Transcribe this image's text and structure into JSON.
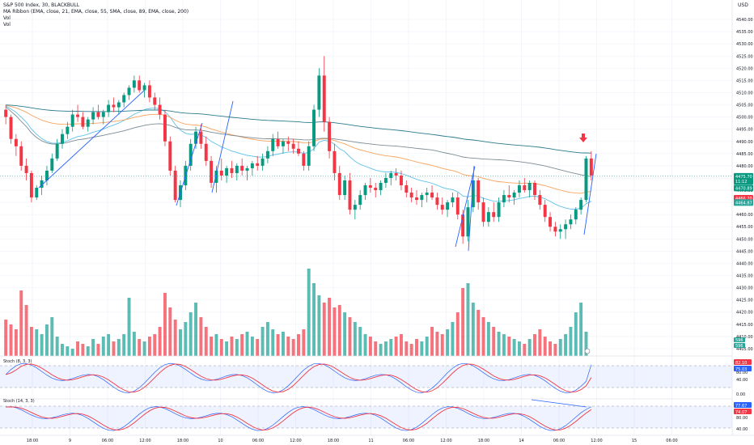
{
  "header": {
    "symbol_line": "S&P 500 Index, 30, BLACKBULL",
    "ma_line": "MA Ribbon (EMA, close, 21, EMA, close, 55, SMA, close, 89, EMA, close, 200)",
    "vol1": "Vol",
    "vol2": "Vol",
    "currency": "USD"
  },
  "price_axis": {
    "ticks": [
      "4540.00",
      "4535.00",
      "4530.00",
      "4525.00",
      "4520.00",
      "4515.00",
      "4510.00",
      "4505.00",
      "4500.00",
      "4495.00",
      "4490.00",
      "4485.00",
      "4480.00",
      "4475.00",
      "4470.00",
      "4465.00",
      "4460.00",
      "4455.00",
      "4450.00",
      "4445.00",
      "4440.00",
      "4435.00",
      "4430.00",
      "4425.00",
      "4420.00",
      "4415.00",
      "4410.00",
      "4405.00"
    ],
    "badges": [
      {
        "text": "4475.70",
        "color": "#089981",
        "y": 4475.7
      },
      {
        "text": "11:12",
        "color": "#089981",
        "y": 4473.6
      },
      {
        "text": "4470.89",
        "color": "#089981",
        "y": 4470.9
      },
      {
        "text": "4466.70",
        "color": "#f23645",
        "y": 4466.7
      },
      {
        "text": "4464.87",
        "color": "#26a69a",
        "y": 4464.9
      }
    ],
    "volume_badges": [
      {
        "text": "596",
        "color": "#26a69a"
      },
      {
        "text": "596",
        "color": "#26a69a"
      }
    ]
  },
  "stoch1": {
    "label": "Stoch (8, 3, 3)",
    "badges": [
      {
        "text": "82.10",
        "color": "#f23645"
      },
      {
        "text": "75.03",
        "color": "#2962ff"
      }
    ],
    "levels": [
      "80.00",
      "40.00",
      "0.00"
    ]
  },
  "stoch2": {
    "label": "Stoch (14, 3, 3)",
    "badges": [
      {
        "text": "77.67",
        "color": "#2962ff"
      },
      {
        "text": "74.07",
        "color": "#f23645"
      }
    ],
    "levels": [
      "80.00",
      "40.00"
    ]
  },
  "time_axis": {
    "labels": [
      "18:00",
      "9",
      "06:00",
      "12:00",
      "18:00",
      "10",
      "06:00",
      "12:00",
      "18:00",
      "11",
      "06:00",
      "12:00",
      "18:00",
      "14",
      "06:00",
      "12:00",
      "15",
      "06:00"
    ]
  },
  "chart_data": {
    "type": "candlestick",
    "title": "S&P 500 Index, 30, BLACKBULL",
    "ylabel": "USD",
    "ylim": [
      4402,
      4543
    ],
    "candles": [
      [
        4503,
        4505,
        4497,
        4500
      ],
      [
        4500,
        4501,
        4489,
        4491
      ],
      [
        4491,
        4493,
        4484,
        4488
      ],
      [
        4488,
        4490,
        4478,
        4480
      ],
      [
        4480,
        4483,
        4474,
        4477
      ],
      [
        4477,
        4478,
        4465,
        4467
      ],
      [
        4467,
        4472,
        4466,
        4471
      ],
      [
        4471,
        4476,
        4468,
        4474
      ],
      [
        4474,
        4480,
        4472,
        4478
      ],
      [
        4478,
        4485,
        4477,
        4483
      ],
      [
        4483,
        4491,
        4482,
        4489
      ],
      [
        4489,
        4495,
        4487,
        4493
      ],
      [
        4493,
        4498,
        4491,
        4496
      ],
      [
        4496,
        4503,
        4494,
        4501
      ],
      [
        4501,
        4505,
        4498,
        4500
      ],
      [
        4500,
        4502,
        4495,
        4496
      ],
      [
        4496,
        4500,
        4494,
        4499
      ],
      [
        4499,
        4504,
        4497,
        4502
      ],
      [
        4502,
        4505,
        4499,
        4500
      ],
      [
        4500,
        4503,
        4497,
        4502
      ],
      [
        4502,
        4507,
        4500,
        4505
      ],
      [
        4505,
        4508,
        4502,
        4504
      ],
      [
        4504,
        4507,
        4501,
        4506
      ],
      [
        4506,
        4510,
        4504,
        4509
      ],
      [
        4509,
        4513,
        4507,
        4512
      ],
      [
        4512,
        4517,
        4510,
        4515
      ],
      [
        4515,
        4517,
        4510,
        4511
      ],
      [
        4511,
        4514,
        4508,
        4513
      ],
      [
        4513,
        4515,
        4506,
        4508
      ],
      [
        4508,
        4510,
        4503,
        4505
      ],
      [
        4505,
        4508,
        4499,
        4501
      ],
      [
        4501,
        4503,
        4488,
        4490
      ],
      [
        4490,
        4492,
        4476,
        4478
      ],
      [
        4478,
        4480,
        4465,
        4466
      ],
      [
        4466,
        4474,
        4463,
        4472
      ],
      [
        4472,
        4482,
        4470,
        4480
      ],
      [
        4480,
        4491,
        4478,
        4489
      ],
      [
        4489,
        4496,
        4487,
        4494
      ],
      [
        4494,
        4497,
        4487,
        4489
      ],
      [
        4489,
        4492,
        4480,
        4482
      ],
      [
        4482,
        4484,
        4471,
        4473
      ],
      [
        4473,
        4480,
        4469,
        4478
      ],
      [
        4478,
        4483,
        4474,
        4476
      ],
      [
        4476,
        4480,
        4473,
        4479
      ],
      [
        4479,
        4482,
        4475,
        4477
      ],
      [
        4477,
        4481,
        4474,
        4480
      ],
      [
        4480,
        4483,
        4476,
        4478
      ],
      [
        4478,
        4480,
        4474,
        4479
      ],
      [
        4479,
        4482,
        4476,
        4481
      ],
      [
        4481,
        4484,
        4478,
        4480
      ],
      [
        4480,
        4485,
        4478,
        4483
      ],
      [
        4483,
        4488,
        4481,
        4486
      ],
      [
        4486,
        4493,
        4484,
        4491
      ],
      [
        4491,
        4494,
        4487,
        4488
      ],
      [
        4488,
        4491,
        4485,
        4490
      ],
      [
        4490,
        4492,
        4486,
        4489
      ],
      [
        4489,
        4491,
        4485,
        4487
      ],
      [
        4487,
        4490,
        4484,
        4485
      ],
      [
        4485,
        4486,
        4478,
        4480
      ],
      [
        4480,
        4490,
        4478,
        4488
      ],
      [
        4488,
        4505,
        4486,
        4503
      ],
      [
        4503,
        4520,
        4500,
        4517
      ],
      [
        4517,
        4525,
        4494,
        4498
      ],
      [
        4498,
        4500,
        4483,
        4486
      ],
      [
        4486,
        4489,
        4474,
        4477
      ],
      [
        4477,
        4480,
        4466,
        4468
      ],
      [
        4468,
        4476,
        4466,
        4474
      ],
      [
        4474,
        4477,
        4460,
        4462
      ],
      [
        4462,
        4466,
        4458,
        4464
      ],
      [
        4464,
        4470,
        4462,
        4468
      ],
      [
        4468,
        4473,
        4466,
        4472
      ],
      [
        4472,
        4475,
        4469,
        4471
      ],
      [
        4471,
        4473,
        4467,
        4470
      ],
      [
        4470,
        4474,
        4468,
        4473
      ],
      [
        4473,
        4477,
        4471,
        4475
      ],
      [
        4475,
        4478,
        4472,
        4477
      ],
      [
        4477,
        4479,
        4474,
        4476
      ],
      [
        4476,
        4478,
        4470,
        4472
      ],
      [
        4472,
        4474,
        4467,
        4469
      ],
      [
        4469,
        4471,
        4465,
        4467
      ],
      [
        4467,
        4470,
        4464,
        4466
      ],
      [
        4466,
        4469,
        4463,
        4468
      ],
      [
        4468,
        4471,
        4465,
        4469
      ],
      [
        4469,
        4472,
        4466,
        4467
      ],
      [
        4467,
        4469,
        4462,
        4464
      ],
      [
        4464,
        4467,
        4460,
        4462
      ],
      [
        4462,
        4466,
        4459,
        4465
      ],
      [
        4465,
        4469,
        4463,
        4467
      ],
      [
        4467,
        4469,
        4458,
        4460
      ],
      [
        4460,
        4462,
        4448,
        4451
      ],
      [
        4451,
        4466,
        4449,
        4463
      ],
      [
        4463,
        4476,
        4461,
        4474
      ],
      [
        4474,
        4475,
        4462,
        4465
      ],
      [
        4465,
        4467,
        4455,
        4457
      ],
      [
        4457,
        4463,
        4455,
        4461
      ],
      [
        4461,
        4465,
        4457,
        4459
      ],
      [
        4459,
        4467,
        4457,
        4465
      ],
      [
        4465,
        4470,
        4463,
        4468
      ],
      [
        4468,
        4472,
        4465,
        4467
      ],
      [
        4467,
        4470,
        4464,
        4469
      ],
      [
        4469,
        4474,
        4467,
        4472
      ],
      [
        4472,
        4475,
        4469,
        4470
      ],
      [
        4470,
        4474,
        4467,
        4473
      ],
      [
        4473,
        4474,
        4466,
        4468
      ],
      [
        4468,
        4470,
        4462,
        4464
      ],
      [
        4464,
        4466,
        4457,
        4459
      ],
      [
        4459,
        4461,
        4453,
        4455
      ],
      [
        4455,
        4457,
        4451,
        4453
      ],
      [
        4453,
        4456,
        4450,
        4454
      ],
      [
        4454,
        4458,
        4450,
        4456
      ],
      [
        4456,
        4460,
        4454,
        4458
      ],
      [
        4458,
        4463,
        4456,
        4462
      ],
      [
        4462,
        4467,
        4460,
        4466
      ],
      [
        4466,
        4484,
        4465,
        4483
      ],
      [
        4483,
        4486,
        4474,
        4476
      ]
    ],
    "volume": [
      15,
      13,
      11,
      27,
      21,
      12,
      11,
      9,
      13,
      16,
      8,
      5,
      4,
      3,
      6,
      5,
      4,
      7,
      5,
      8,
      9,
      6,
      7,
      9,
      24,
      10,
      7,
      6,
      8,
      9,
      12,
      26,
      20,
      15,
      11,
      14,
      18,
      22,
      16,
      12,
      8,
      9,
      7,
      6,
      8,
      7,
      9,
      10,
      8,
      7,
      12,
      14,
      11,
      9,
      10,
      8,
      7,
      9,
      11,
      36,
      30,
      25,
      22,
      24,
      20,
      21,
      18,
      16,
      14,
      12,
      9,
      8,
      6,
      5,
      6,
      7,
      8,
      9,
      6,
      5,
      7,
      6,
      8,
      12,
      10,
      9,
      11,
      14,
      18,
      28,
      30,
      22,
      19,
      16,
      14,
      12,
      10,
      9,
      8,
      7,
      6,
      5,
      7,
      9,
      11,
      8,
      6,
      5,
      7,
      9,
      12,
      18,
      22,
      10
    ]
  }
}
